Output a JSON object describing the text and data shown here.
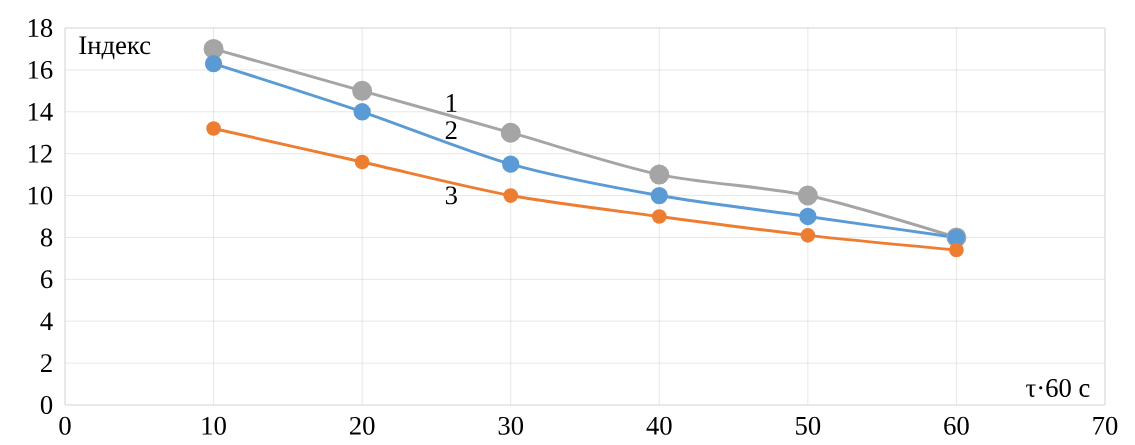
{
  "chart_data": {
    "type": "line",
    "xlabel": "τ·60 с",
    "ylabel": "Індекс",
    "xlim": [
      0,
      70
    ],
    "xticks": [
      0,
      10,
      20,
      30,
      40,
      50,
      60,
      70
    ],
    "ylim": [
      0,
      18
    ],
    "yticks": [
      0,
      2,
      4,
      6,
      8,
      10,
      12,
      14,
      16,
      18
    ],
    "grid": true,
    "marker": "circle",
    "line_style": "solid",
    "x": [
      10,
      20,
      30,
      40,
      50,
      60
    ],
    "series": [
      {
        "name": "1",
        "color": "#a5a5a5",
        "values": [
          17.0,
          15.0,
          13.0,
          11.0,
          10.0,
          8.0
        ]
      },
      {
        "name": "2",
        "color": "#5b9bd5",
        "values": [
          16.3,
          14.0,
          11.5,
          10.0,
          9.0,
          8.0
        ]
      },
      {
        "name": "3",
        "color": "#ed7d31",
        "values": [
          13.2,
          11.6,
          10.0,
          9.0,
          8.1,
          7.4
        ]
      }
    ]
  }
}
